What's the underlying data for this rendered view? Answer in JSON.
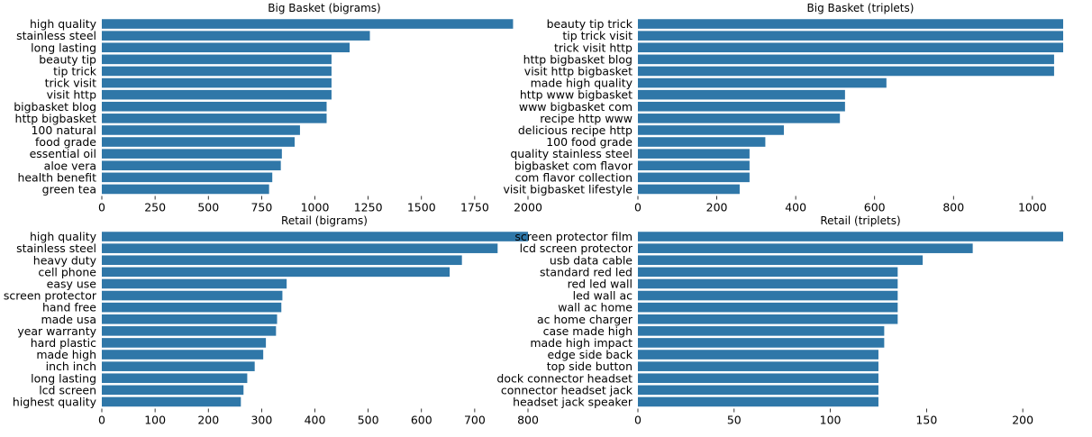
{
  "bar_color": "#2f77a8",
  "chart_data": [
    {
      "type": "bar",
      "orientation": "horizontal",
      "title": "Big Basket (bigrams)",
      "categories": [
        "high quality",
        "stainless steel",
        "long lasting",
        "beauty tip",
        "tip trick",
        "trick visit",
        "visit http",
        "bigbasket blog",
        "http bigbasket",
        "100 natural",
        "food grade",
        "essential oil",
        "aloe vera",
        "health benefit",
        "green tea"
      ],
      "values": [
        1930,
        1258,
        1163,
        1078,
        1078,
        1078,
        1078,
        1055,
        1055,
        930,
        905,
        845,
        840,
        800,
        785
      ],
      "xlim": [
        0,
        2000
      ],
      "xticks": [
        "0",
        "250",
        "500",
        "750",
        "1000",
        "1250",
        "1500",
        "1750",
        "2000"
      ],
      "xtick_values": [
        0,
        250,
        500,
        750,
        1000,
        1250,
        1500,
        1750,
        2000
      ],
      "grid": false
    },
    {
      "type": "bar",
      "orientation": "horizontal",
      "title": "Big Basket (triplets)",
      "categories": [
        "beauty tip trick",
        "tip trick visit",
        "trick visit http",
        "http bigbasket blog",
        "visit http bigbasket",
        "made high quality",
        "http www bigbasket",
        "www bigbasket com",
        "recipe http www",
        "delicious recipe http",
        "100 food grade",
        "quality stainless steel",
        "bigbasket com flavor",
        "com flavor collection",
        "visit bigbasket lifestyle"
      ],
      "values": [
        1078,
        1078,
        1078,
        1055,
        1055,
        630,
        525,
        525,
        512,
        370,
        323,
        283,
        283,
        283,
        258
      ],
      "xlim": [
        0,
        1078
      ],
      "xticks": [
        "0",
        "200",
        "400",
        "600",
        "800",
        "1000"
      ],
      "xtick_values": [
        0,
        200,
        400,
        600,
        800,
        1000
      ],
      "grid": false
    },
    {
      "type": "bar",
      "orientation": "horizontal",
      "title": "Retail (bigrams)",
      "categories": [
        "high quality",
        "stainless steel",
        "heavy duty",
        "cell phone",
        "easy use",
        "screen protector",
        "hand free",
        "made usa",
        "year warranty",
        "hard plastic",
        "made high",
        "inch inch",
        "long lasting",
        "lcd screen",
        "highest quality"
      ],
      "values": [
        800,
        743,
        676,
        653,
        347,
        339,
        337,
        329,
        327,
        308,
        303,
        287,
        273,
        266,
        261
      ],
      "xlim": [
        0,
        800
      ],
      "xticks": [
        "0",
        "100",
        "200",
        "300",
        "400",
        "500",
        "600",
        "700",
        "800"
      ],
      "xtick_values": [
        0,
        100,
        200,
        300,
        400,
        500,
        600,
        700,
        800
      ],
      "grid": false
    },
    {
      "type": "bar",
      "orientation": "horizontal",
      "title": "Retail (triplets)",
      "categories": [
        "screen protector film",
        "lcd screen protector",
        "usb data cable",
        "standard red led",
        "red led wall",
        "led wall ac",
        "wall ac home",
        "ac home charger",
        "case made high",
        "made high impact",
        "edge side back",
        "top side button",
        "dock connector headset",
        "connector headset jack",
        "headset jack speaker"
      ],
      "values": [
        221,
        174,
        148,
        135,
        135,
        135,
        135,
        135,
        128,
        128,
        125,
        125,
        125,
        125,
        125
      ],
      "xlim": [
        0,
        221
      ],
      "xticks": [
        "0",
        "50",
        "100",
        "150",
        "200"
      ],
      "xtick_values": [
        0,
        50,
        100,
        150,
        200
      ],
      "grid": false
    }
  ]
}
